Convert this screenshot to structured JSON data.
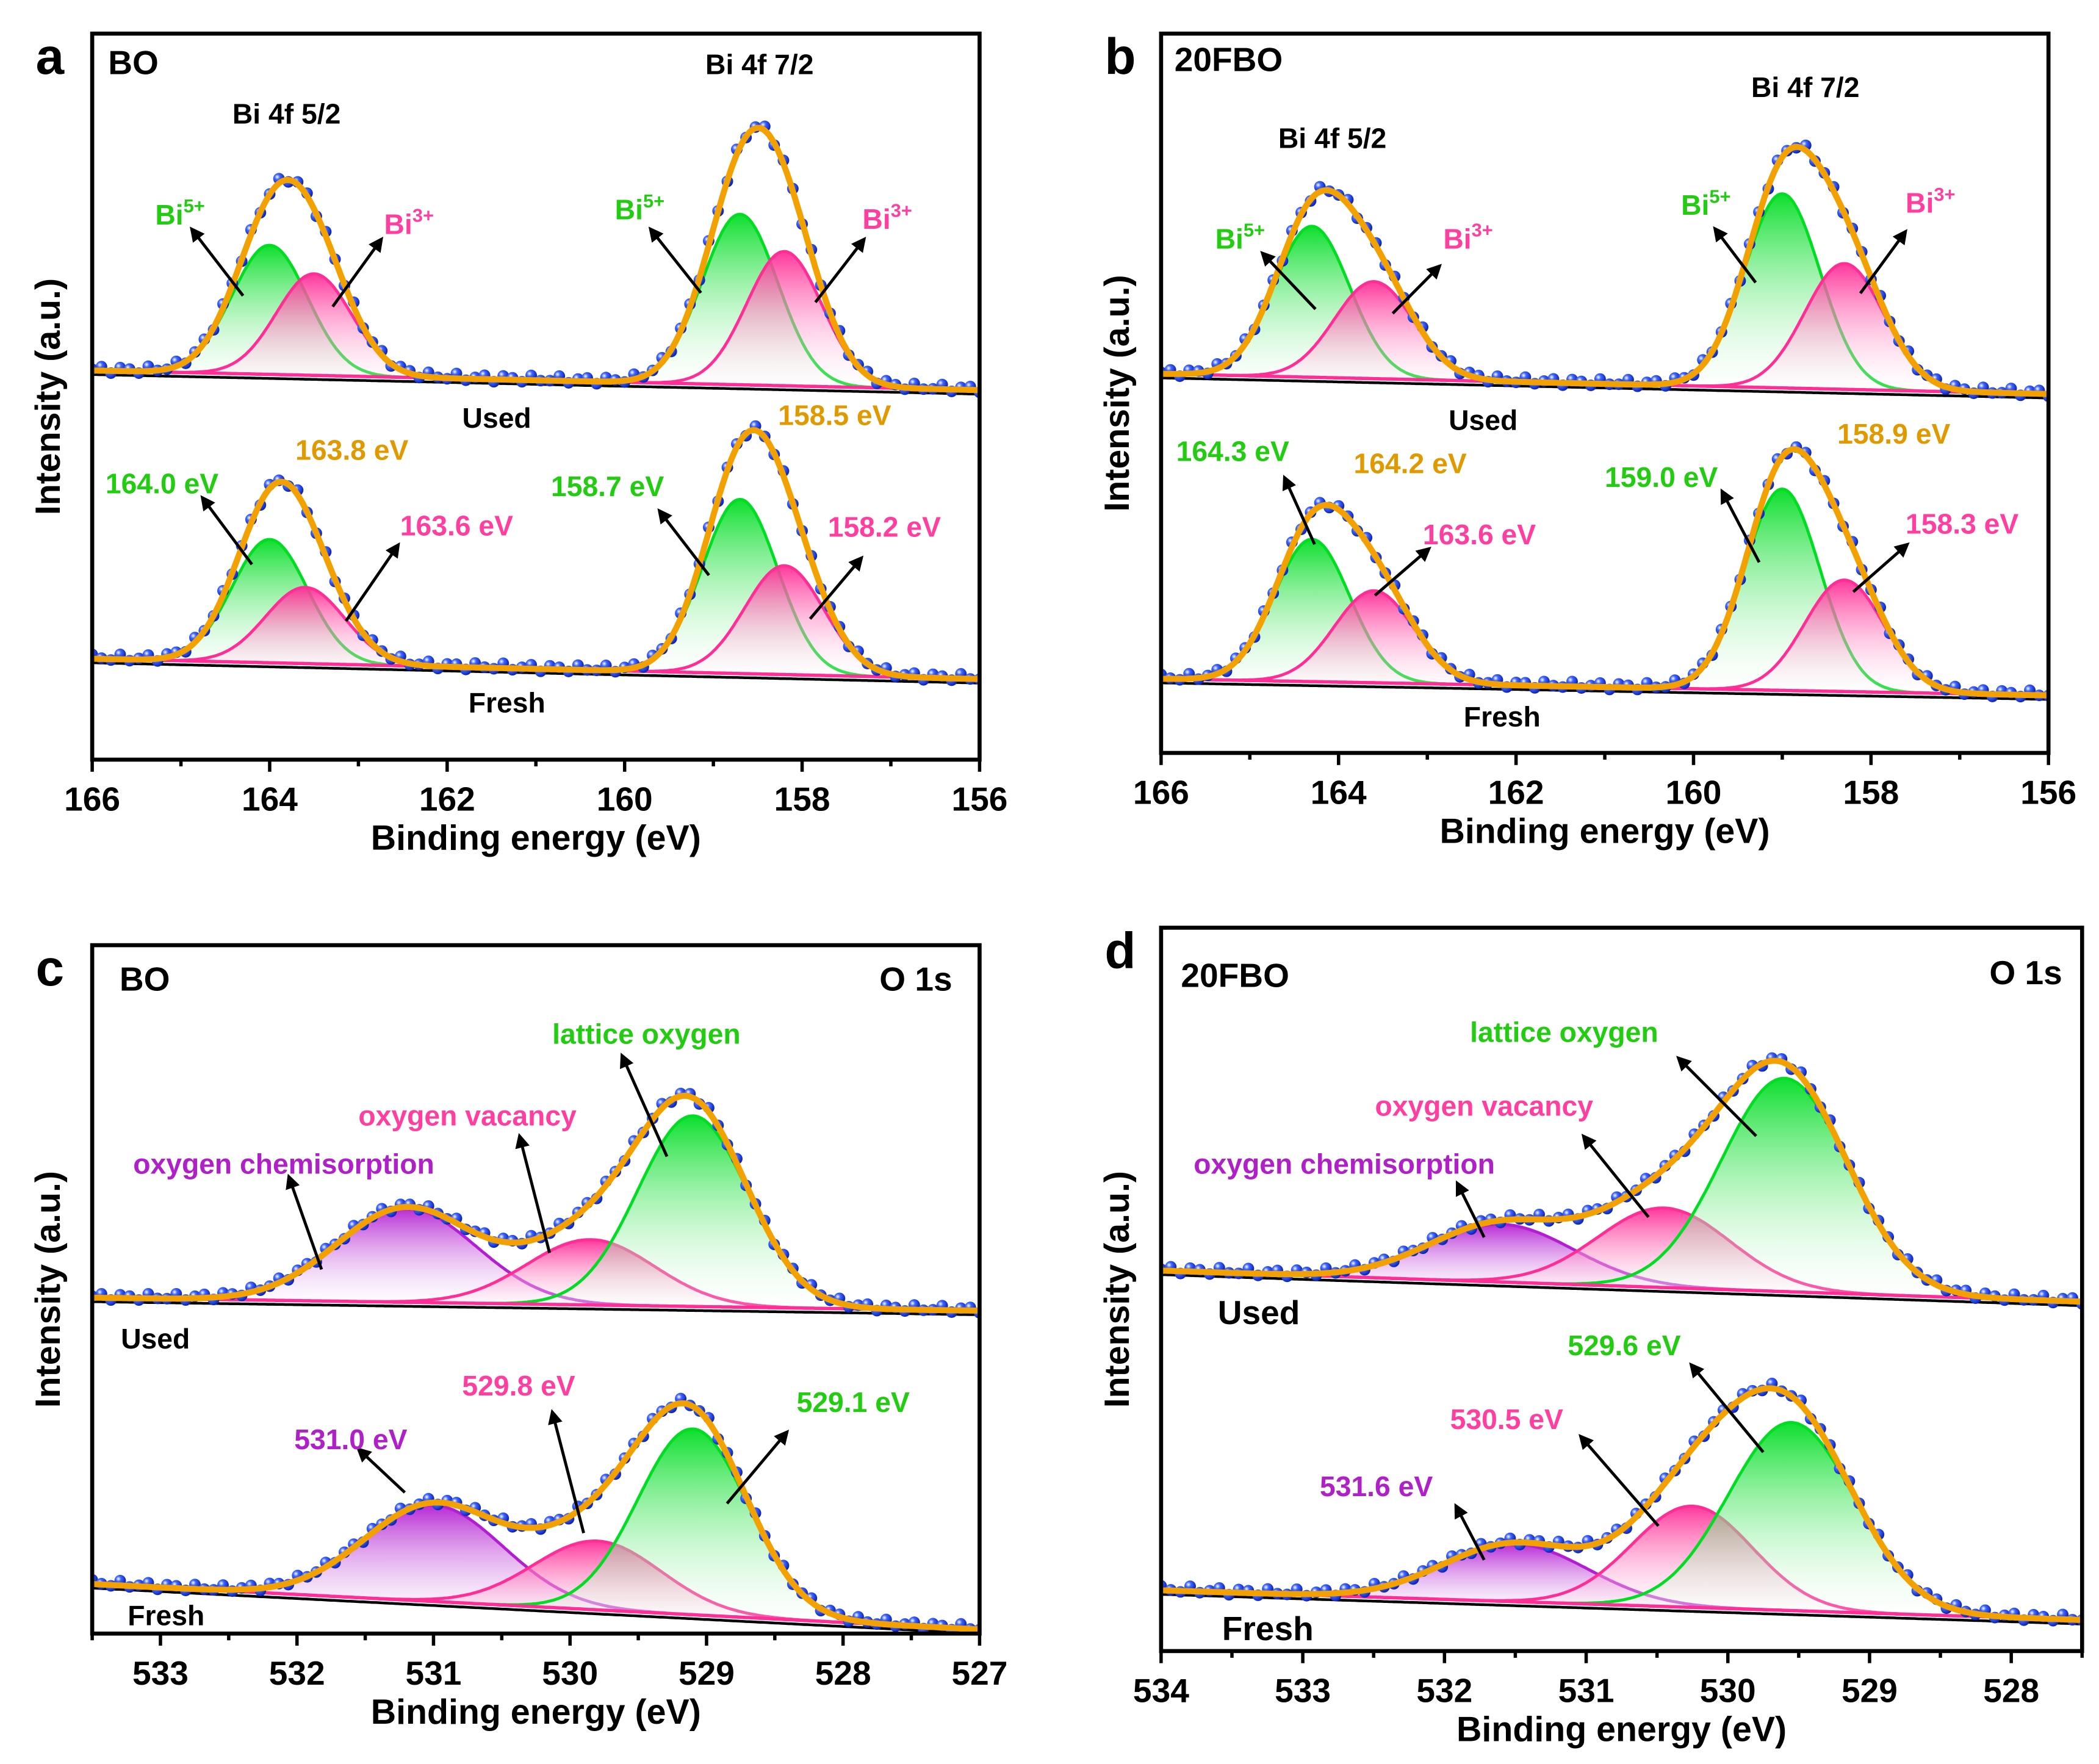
{
  "colors": {
    "green": "#00dd22",
    "pink": "#ff2d96",
    "purple": "#b41ed2",
    "orange": "#f2a100",
    "dots": "#1f3fe6",
    "green_text": "#22cc11",
    "pink_text": "#ff3fa0",
    "purple_text": "#b020c8",
    "orange_text": "#e09a00",
    "black": "#000000"
  },
  "chart_data": [
    {
      "label": "a",
      "type": "line",
      "xlabel": "Binding energy (eV)",
      "ylabel": "Intensity (a.u.)",
      "xlim": [
        166,
        156
      ],
      "ylim": [
        0,
        100
      ],
      "xticks": [
        166,
        164,
        162,
        160,
        158,
        156
      ],
      "minor_step": 1,
      "spectra": [
        {
          "name": "Used",
          "baseline": [
            53.6,
            50.9
          ],
          "peaks": [
            {
              "name": "Bi5+ 4f5/2",
              "center": 164.0,
              "height": 17.8,
              "fwhm": 1.0,
              "color": "green"
            },
            {
              "name": "Bi3+ 4f5/2",
              "center": 163.5,
              "height": 14.0,
              "fwhm": 1.0,
              "color": "pink"
            },
            {
              "name": "Bi5+ 4f7/2",
              "center": 158.7,
              "height": 23.5,
              "fwhm": 1.0,
              "color": "green"
            },
            {
              "name": "Bi3+ 4f7/2",
              "center": 158.2,
              "height": 18.5,
              "fwhm": 1.0,
              "color": "pink"
            }
          ]
        },
        {
          "name": "Fresh",
          "baseline": [
            13.9,
            11.1
          ],
          "peaks": [
            {
              "name": "Bi5+ 4f5/2",
              "center": 164.0,
              "height": 17.0,
              "fwhm": 1.0,
              "color": "green"
            },
            {
              "name": "Bi3+ 4f5/2",
              "center": 163.6,
              "height": 10.5,
              "fwhm": 1.05,
              "color": "pink"
            },
            {
              "name": "Bi5+ 4f7/2",
              "center": 158.7,
              "height": 24.0,
              "fwhm": 1.0,
              "color": "green"
            },
            {
              "name": "Bi3+ 4f7/2",
              "center": 158.2,
              "height": 15.0,
              "fwhm": 1.05,
              "color": "pink"
            }
          ]
        }
      ],
      "annotations": [
        {
          "text": "BO",
          "x": 165.82,
          "y": 94.4,
          "color": "black",
          "size": "l"
        },
        {
          "text": "Bi 4f 5/2",
          "x": 164.42,
          "y": 87.6,
          "color": "black"
        },
        {
          "text": "Bi 4f 7/2",
          "x": 159.09,
          "y": 94.4,
          "color": "black"
        },
        {
          "text": "Bi",
          "sup": "5+",
          "x": 165.29,
          "y": 73.7,
          "color": "green_text"
        },
        {
          "text": "Bi",
          "sup": "3+",
          "x": 162.71,
          "y": 72.4,
          "color": "pink_text"
        },
        {
          "text": "Bi",
          "sup": "5+",
          "x": 160.11,
          "y": 74.4,
          "color": "green_text"
        },
        {
          "text": "Bi",
          "sup": "3+",
          "x": 157.32,
          "y": 73.1,
          "color": "pink_text"
        },
        {
          "text": "Used",
          "x": 161.83,
          "y": 45.7,
          "color": "black"
        },
        {
          "text": "163.8 eV",
          "x": 163.71,
          "y": 41.3,
          "color": "orange_text"
        },
        {
          "text": "158.5 eV",
          "x": 158.27,
          "y": 46.1,
          "color": "orange_text"
        },
        {
          "text": "164.0 eV",
          "x": 165.85,
          "y": 36.7,
          "color": "green_text"
        },
        {
          "text": "158.7 eV",
          "x": 160.83,
          "y": 36.3,
          "color": "green_text"
        },
        {
          "text": "163.6 eV",
          "x": 162.53,
          "y": 30.9,
          "color": "pink_text"
        },
        {
          "text": "158.2 eV",
          "x": 157.71,
          "y": 30.7,
          "color": "pink_text"
        },
        {
          "text": "Fresh",
          "x": 161.76,
          "y": 6.5,
          "color": "black"
        }
      ],
      "arrows": [
        [
          [
            164.3,
            63.9
          ],
          [
            164.88,
            73.1
          ]
        ],
        [
          [
            163.29,
            62.4
          ],
          [
            162.74,
            71.7
          ]
        ],
        [
          [
            159.14,
            64.3
          ],
          [
            159.71,
            73.1
          ]
        ],
        [
          [
            157.85,
            63.0
          ],
          [
            157.3,
            71.7
          ]
        ],
        [
          [
            164.2,
            26.9
          ],
          [
            164.76,
            36.1
          ]
        ],
        [
          [
            163.14,
            19.1
          ],
          [
            162.55,
            29.6
          ]
        ],
        [
          [
            159.05,
            25.4
          ],
          [
            159.61,
            34.3
          ]
        ],
        [
          [
            157.91,
            19.4
          ],
          [
            157.33,
            27.8
          ]
        ]
      ]
    },
    {
      "label": "b",
      "type": "line",
      "xlabel": "Binding energy (eV)",
      "ylabel": "Intensity (a.u.)",
      "xlim": [
        166,
        156
      ],
      "ylim": [
        0,
        100
      ],
      "xticks": [
        166,
        164,
        162,
        160,
        158,
        156
      ],
      "minor_step": 1,
      "spectra": [
        {
          "name": "Used",
          "baseline": [
            52.7,
            49.9
          ],
          "peaks": [
            {
              "name": "Bi5+ 4f5/2",
              "center": 164.3,
              "height": 21.0,
              "fwhm": 1.0,
              "color": "green"
            },
            {
              "name": "Bi3+ 4f5/2",
              "center": 163.6,
              "height": 13.5,
              "fwhm": 1.05,
              "color": "pink"
            },
            {
              "name": "Bi5+ 4f7/2",
              "center": 159.0,
              "height": 27.0,
              "fwhm": 1.0,
              "color": "green"
            },
            {
              "name": "Bi3+ 4f7/2",
              "center": 158.3,
              "height": 17.5,
              "fwhm": 1.05,
              "color": "pink"
            }
          ]
        },
        {
          "name": "Fresh",
          "baseline": [
            10.3,
            8.0
          ],
          "peaks": [
            {
              "name": "Bi5+ 4f5/2",
              "center": 164.3,
              "height": 19.8,
              "fwhm": 1.0,
              "color": "green"
            },
            {
              "name": "Bi3+ 4f5/2",
              "center": 163.6,
              "height": 12.8,
              "fwhm": 1.05,
              "color": "pink"
            },
            {
              "name": "Bi5+ 4f7/2",
              "center": 159.0,
              "height": 28.0,
              "fwhm": 1.0,
              "color": "green"
            },
            {
              "name": "Bi3+ 4f7/2",
              "center": 158.3,
              "height": 15.5,
              "fwhm": 1.05,
              "color": "pink"
            }
          ]
        }
      ],
      "annotations": [
        {
          "text": "20FBO",
          "x": 165.85,
          "y": 94.8,
          "color": "black",
          "size": "l"
        },
        {
          "text": "Bi 4f 5/2",
          "x": 164.68,
          "y": 84.1,
          "color": "black"
        },
        {
          "text": "Bi 4f 7/2",
          "x": 159.35,
          "y": 91.2,
          "color": "black"
        },
        {
          "text": "Bi",
          "sup": "5+",
          "x": 165.39,
          "y": 70.1,
          "color": "green_text"
        },
        {
          "text": "Bi",
          "sup": "3+",
          "x": 162.82,
          "y": 70.1,
          "color": "pink_text"
        },
        {
          "text": "Bi",
          "sup": "5+",
          "x": 160.14,
          "y": 74.8,
          "color": "green_text"
        },
        {
          "text": "Bi",
          "sup": "3+",
          "x": 157.61,
          "y": 75.1,
          "color": "pink_text"
        },
        {
          "text": "Used",
          "x": 162.76,
          "y": 44.9,
          "color": "black"
        },
        {
          "text": "164.3 eV",
          "x": 165.83,
          "y": 40.6,
          "color": "green_text"
        },
        {
          "text": "164.2 eV",
          "x": 163.83,
          "y": 38.9,
          "color": "orange_text"
        },
        {
          "text": "159.0 eV",
          "x": 161.0,
          "y": 37.0,
          "color": "green_text"
        },
        {
          "text": "158.9 eV",
          "x": 158.38,
          "y": 43.0,
          "color": "orange_text"
        },
        {
          "text": "163.6 eV",
          "x": 163.05,
          "y": 29.0,
          "color": "pink_text"
        },
        {
          "text": "158.3 eV",
          "x": 157.61,
          "y": 30.5,
          "color": "pink_text"
        },
        {
          "text": "Fresh",
          "x": 162.59,
          "y": 3.7,
          "color": "black"
        }
      ],
      "arrows": [
        [
          [
            164.26,
            61.7
          ],
          [
            164.86,
            69.5
          ]
        ],
        [
          [
            163.39,
            61.1
          ],
          [
            162.86,
            67.7
          ]
        ],
        [
          [
            159.3,
            65.4
          ],
          [
            159.76,
            72.9
          ]
        ],
        [
          [
            158.12,
            63.9
          ],
          [
            157.61,
            72.5
          ]
        ],
        [
          [
            164.27,
            29.0
          ],
          [
            164.61,
            38.3
          ]
        ],
        [
          [
            163.59,
            21.9
          ],
          [
            162.98,
            28.4
          ]
        ],
        [
          [
            159.26,
            26.5
          ],
          [
            159.68,
            36.4
          ]
        ],
        [
          [
            158.2,
            22.4
          ],
          [
            157.59,
            29.0
          ]
        ]
      ]
    },
    {
      "label": "c",
      "type": "line",
      "xlabel": "Binding energy (eV)",
      "ylabel": "Intensity (a.u.)",
      "xlim": [
        533.5,
        527
      ],
      "ylim": [
        0,
        100
      ],
      "xticks": [
        533,
        532,
        531,
        530,
        529,
        528,
        527
      ],
      "minor_step": 0.5,
      "spectra": [
        {
          "name": "Used",
          "baseline": [
            48.8,
            46.9
          ],
          "peaks": [
            {
              "name": "oxygen chemisorption",
              "center": 531.2,
              "height": 13.7,
              "fwhm": 1.2,
              "color": "purple"
            },
            {
              "name": "oxygen vacancy",
              "center": 529.85,
              "height": 9.5,
              "fwhm": 1.1,
              "color": "pink"
            },
            {
              "name": "lattice oxygen",
              "center": 529.1,
              "height": 27.7,
              "fwhm": 0.95,
              "color": "green"
            }
          ]
        },
        {
          "name": "Fresh",
          "baseline": [
            7.2,
            0.6
          ],
          "peaks": [
            {
              "name": "oxygen chemisorption",
              "center": 531.0,
              "height": 14.0,
              "fwhm": 1.2,
              "color": "purple"
            },
            {
              "name": "oxygen vacancy",
              "center": 529.8,
              "height": 10.0,
              "fwhm": 1.1,
              "color": "pink"
            },
            {
              "name": "lattice oxygen",
              "center": 529.1,
              "height": 27.0,
              "fwhm": 0.95,
              "color": "green"
            }
          ]
        }
      ],
      "annotations": [
        {
          "text": "BO",
          "x": 533.3,
          "y": 93.4,
          "color": "black",
          "size": "l"
        },
        {
          "text": "O 1s",
          "x": 527.2,
          "y": 93.4,
          "color": "black",
          "size": "l",
          "anchor": "end"
        },
        {
          "text": "lattice oxygen",
          "x": 530.13,
          "y": 85.7,
          "color": "green_text"
        },
        {
          "text": "oxygen vacancy",
          "x": 531.55,
          "y": 73.8,
          "color": "pink_text"
        },
        {
          "text": "oxygen chemisorption",
          "x": 533.2,
          "y": 66.8,
          "color": "purple_text"
        },
        {
          "text": "Used",
          "x": 533.29,
          "y": 41.4,
          "color": "black"
        },
        {
          "text": "529.8 eV",
          "x": 530.79,
          "y": 34.6,
          "color": "pink_text"
        },
        {
          "text": "529.1 eV",
          "x": 528.34,
          "y": 32.2,
          "color": "green_text"
        },
        {
          "text": "531.0 eV",
          "x": 532.02,
          "y": 26.8,
          "color": "purple_text"
        },
        {
          "text": "Fresh",
          "x": 533.24,
          "y": 1.2,
          "color": "black"
        }
      ],
      "arrows": [
        [
          [
            529.29,
            69.3
          ],
          [
            529.62,
            84.0
          ]
        ],
        [
          [
            530.15,
            55.3
          ],
          [
            530.37,
            72.3
          ]
        ],
        [
          [
            531.82,
            52.9
          ],
          [
            532.06,
            66.4
          ]
        ],
        [
          [
            529.9,
            14.6
          ],
          [
            530.13,
            32.2
          ]
        ],
        [
          [
            528.85,
            18.9
          ],
          [
            528.41,
            29.3
          ]
        ],
        [
          [
            531.21,
            20.5
          ],
          [
            531.55,
            26.8
          ]
        ]
      ]
    },
    {
      "label": "d",
      "type": "line",
      "xlabel": "Binding energy (eV)",
      "ylabel": "Intensity (a.u.)",
      "xlim": [
        534,
        527.5
      ],
      "ylim": [
        0,
        100
      ],
      "xticks": [
        534,
        533,
        532,
        531,
        530,
        529,
        528
      ],
      "minor_step": 0.5,
      "spectra": [
        {
          "name": "Used",
          "baseline": [
            52.6,
            48.3
          ],
          "peaks": [
            {
              "name": "oxygen chemisorption",
              "center": 531.6,
              "height": 8.0,
              "fwhm": 1.2,
              "color": "purple"
            },
            {
              "name": "oxygen vacancy",
              "center": 530.45,
              "height": 11.0,
              "fwhm": 1.1,
              "color": "pink"
            },
            {
              "name": "lattice oxygen",
              "center": 529.6,
              "height": 29.5,
              "fwhm": 1.05,
              "color": "green"
            }
          ]
        },
        {
          "name": "Fresh",
          "baseline": [
            8.4,
            4.3
          ],
          "peaks": [
            {
              "name": "oxygen chemisorption",
              "center": 531.5,
              "height": 8.0,
              "fwhm": 1.2,
              "color": "purple"
            },
            {
              "name": "oxygen vacancy",
              "center": 530.25,
              "height": 14.0,
              "fwhm": 1.0,
              "color": "pink"
            },
            {
              "name": "lattice oxygen",
              "center": 529.55,
              "height": 26.0,
              "fwhm": 1.05,
              "color": "green"
            }
          ]
        }
      ],
      "annotations": [
        {
          "text": "20FBO",
          "x": 533.86,
          "y": 91.8,
          "color": "black",
          "size": "l"
        },
        {
          "text": "O 1s",
          "x": 527.64,
          "y": 92.2,
          "color": "black",
          "size": "l",
          "anchor": "end"
        },
        {
          "text": "lattice oxygen",
          "x": 531.82,
          "y": 84.2,
          "color": "green_text"
        },
        {
          "text": "oxygen vacancy",
          "x": 532.49,
          "y": 74.0,
          "color": "pink_text"
        },
        {
          "text": "oxygen chemisorption",
          "x": 533.77,
          "y": 66.0,
          "color": "purple_text"
        },
        {
          "text": "Used",
          "x": 533.6,
          "y": 45.2,
          "color": "black",
          "size": "l"
        },
        {
          "text": "529.6 eV",
          "x": 531.13,
          "y": 40.9,
          "color": "green_text"
        },
        {
          "text": "530.5 eV",
          "x": 531.96,
          "y": 30.7,
          "color": "pink_text"
        },
        {
          "text": "531.6 eV",
          "x": 532.88,
          "y": 21.4,
          "color": "purple_text"
        },
        {
          "text": "Fresh",
          "x": 533.57,
          "y": 1.5,
          "color": "black",
          "size": "l"
        }
      ],
      "arrows": [
        [
          [
            529.8,
            71.2
          ],
          [
            530.35,
            82.0
          ]
        ],
        [
          [
            530.56,
            60.0
          ],
          [
            531.02,
            71.2
          ]
        ],
        [
          [
            531.72,
            57.2
          ],
          [
            531.91,
            64.7
          ]
        ],
        [
          [
            529.75,
            27.5
          ],
          [
            530.26,
            39.6
          ]
        ],
        [
          [
            530.49,
            17.3
          ],
          [
            531.04,
            29.7
          ]
        ],
        [
          [
            531.72,
            12.6
          ],
          [
            531.92,
            20.1
          ]
        ]
      ]
    }
  ]
}
